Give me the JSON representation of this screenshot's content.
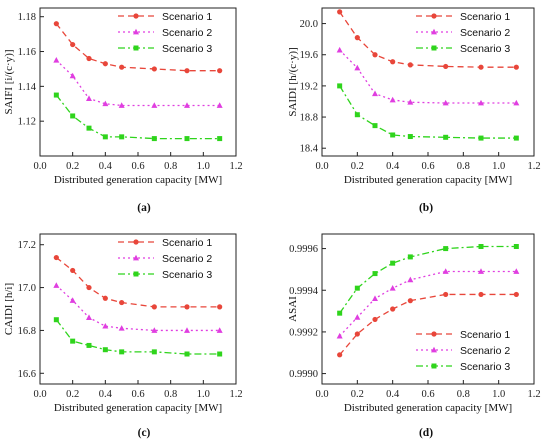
{
  "chart_data": [
    {
      "panel_label": "(a)",
      "type": "line",
      "xlabel": "Distributed generation capacity [MW]",
      "ylabel": "SAIFI [i/(c·y)]",
      "xlim": [
        0,
        1.2
      ],
      "ylim": [
        1.1,
        1.185
      ],
      "xticks": [
        "0.0",
        "0.2",
        "0.4",
        "0.6",
        "0.8",
        "1.0",
        "1.2"
      ],
      "yticks": [
        "1.12",
        "1.14",
        "1.16",
        "1.18"
      ],
      "legend_position": "top-right",
      "x": [
        0.1,
        0.2,
        0.3,
        0.4,
        0.5,
        0.7,
        0.9,
        1.1
      ],
      "series": [
        {
          "name": "Scenario 1",
          "values": [
            1.176,
            1.164,
            1.156,
            1.153,
            1.151,
            1.15,
            1.149,
            1.149
          ]
        },
        {
          "name": "Scenario 2",
          "values": [
            1.155,
            1.146,
            1.133,
            1.13,
            1.129,
            1.129,
            1.129,
            1.129
          ]
        },
        {
          "name": "Scenario 3",
          "values": [
            1.135,
            1.123,
            1.116,
            1.111,
            1.111,
            1.11,
            1.11,
            1.11
          ]
        }
      ]
    },
    {
      "panel_label": "(b)",
      "type": "line",
      "xlabel": "Distributed generation capacity [MW]",
      "ylabel": "SAIDI [h/(c·y)]",
      "xlim": [
        0,
        1.2
      ],
      "ylim": [
        18.3,
        20.2
      ],
      "xticks": [
        "0.0",
        "0.2",
        "0.4",
        "0.6",
        "0.8",
        "1.0",
        "1.2"
      ],
      "yticks": [
        "18.4",
        "18.8",
        "19.2",
        "19.6",
        "20.0"
      ],
      "legend_position": "top-right",
      "x": [
        0.1,
        0.2,
        0.3,
        0.4,
        0.5,
        0.7,
        0.9,
        1.1
      ],
      "series": [
        {
          "name": "Scenario 1",
          "values": [
            20.15,
            19.82,
            19.6,
            19.51,
            19.47,
            19.45,
            19.44,
            19.44
          ]
        },
        {
          "name": "Scenario 2",
          "values": [
            19.66,
            19.43,
            19.1,
            19.02,
            18.99,
            18.98,
            18.98,
            18.98
          ]
        },
        {
          "name": "Scenario 3",
          "values": [
            19.2,
            18.83,
            18.69,
            18.57,
            18.55,
            18.54,
            18.53,
            18.53
          ]
        }
      ]
    },
    {
      "panel_label": "(c)",
      "type": "line",
      "xlabel": "Distributed generation capacity [MW]",
      "ylabel": "CAIDI [h/i]",
      "xlim": [
        0,
        1.2
      ],
      "ylim": [
        16.55,
        17.25
      ],
      "xticks": [
        "0.0",
        "0.2",
        "0.4",
        "0.6",
        "0.8",
        "1.0",
        "1.2"
      ],
      "yticks": [
        "16.6",
        "16.8",
        "17.0",
        "17.2"
      ],
      "legend_position": "top-right",
      "x": [
        0.1,
        0.2,
        0.3,
        0.4,
        0.5,
        0.7,
        0.9,
        1.1
      ],
      "series": [
        {
          "name": "Scenario 1",
          "values": [
            17.14,
            17.08,
            17.0,
            16.95,
            16.93,
            16.91,
            16.91,
            16.91
          ]
        },
        {
          "name": "Scenario 2",
          "values": [
            17.01,
            16.94,
            16.86,
            16.82,
            16.81,
            16.8,
            16.8,
            16.8
          ]
        },
        {
          "name": "Scenario 3",
          "values": [
            16.85,
            16.75,
            16.73,
            16.71,
            16.7,
            16.7,
            16.69,
            16.69
          ]
        }
      ]
    },
    {
      "panel_label": "(d)",
      "type": "line",
      "xlabel": "Distributed generation capacity [MW]",
      "ylabel": "ASAI",
      "xlim": [
        0,
        1.2
      ],
      "ylim": [
        0.99895,
        0.99967
      ],
      "xticks": [
        "0.0",
        "0.2",
        "0.4",
        "0.6",
        "0.8",
        "1.0",
        "1.2"
      ],
      "yticks": [
        "0.9990",
        "0.9992",
        "0.9994",
        "0.9996"
      ],
      "legend_position": "bottom-right",
      "x": [
        0.1,
        0.2,
        0.3,
        0.4,
        0.5,
        0.7,
        0.9,
        1.1
      ],
      "series": [
        {
          "name": "Scenario 1",
          "values": [
            0.99909,
            0.99919,
            0.99926,
            0.99931,
            0.99935,
            0.99938,
            0.99938,
            0.99938
          ]
        },
        {
          "name": "Scenario 2",
          "values": [
            0.99918,
            0.99927,
            0.99936,
            0.99941,
            0.99945,
            0.99949,
            0.99949,
            0.99949
          ]
        },
        {
          "name": "Scenario 3",
          "values": [
            0.99929,
            0.99941,
            0.99948,
            0.99953,
            0.99956,
            0.9996,
            0.99961,
            0.99961
          ]
        }
      ]
    }
  ],
  "series_colors": [
    "#e8463a",
    "#e03ee0",
    "#2fd41c"
  ],
  "series_markers": [
    "circle",
    "triangle",
    "square"
  ],
  "series_dash": [
    "dashed",
    "dotted",
    "dash-dot"
  ]
}
